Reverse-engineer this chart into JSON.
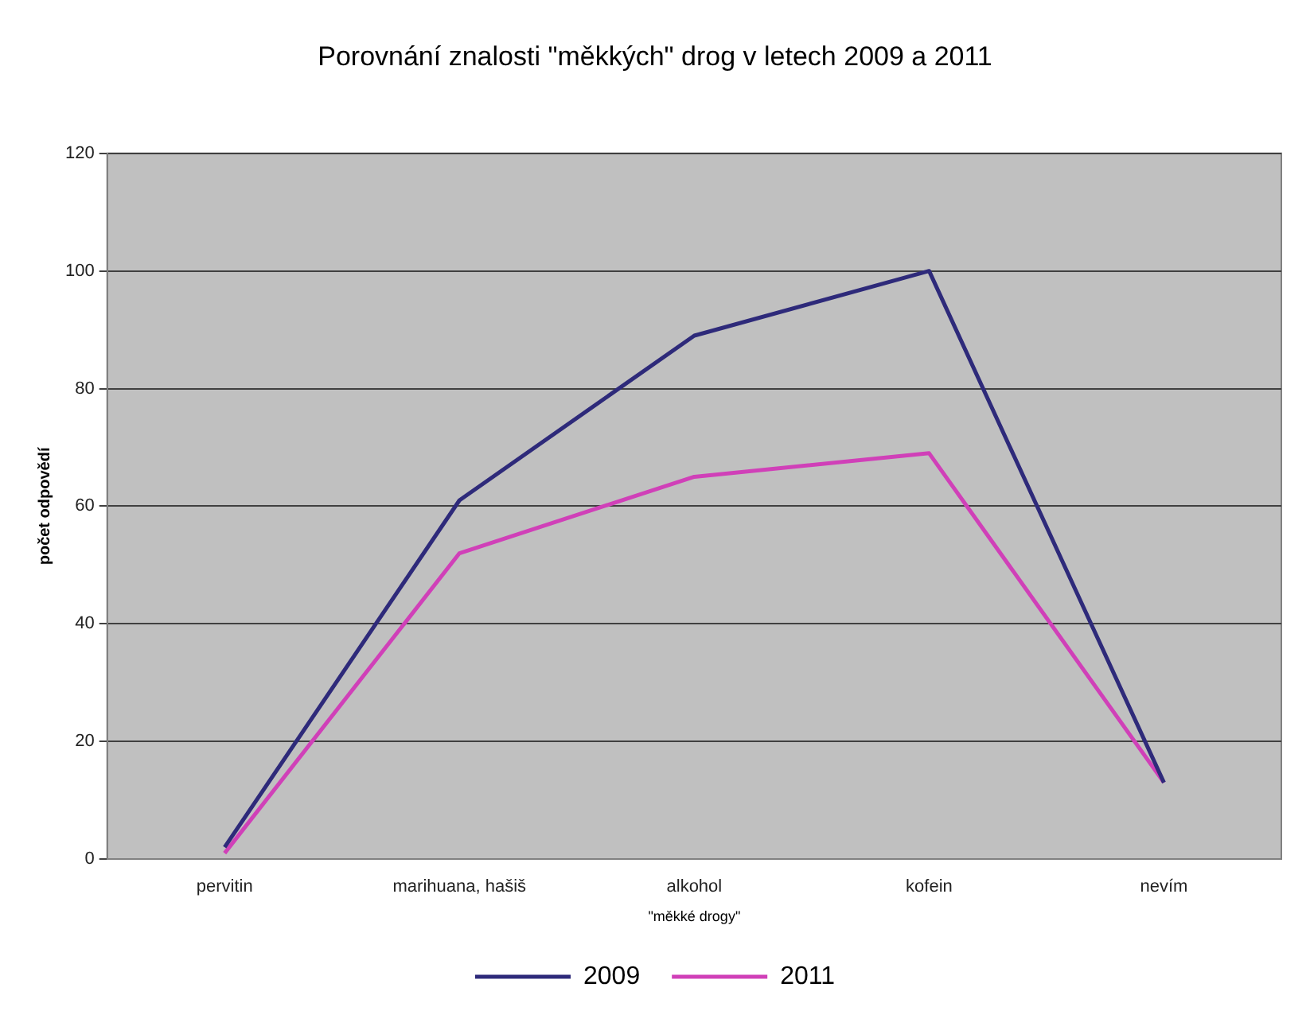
{
  "chart_data": {
    "type": "line",
    "title": "Porovnání znalosti \"měkkých\" drog v letech 2009 a 2011",
    "xlabel": "\"měkké drogy\"",
    "ylabel": "počet odpovědí",
    "categories": [
      "pervitin",
      "marihuana, hašiš",
      "alkohol",
      "kofein",
      "nevím"
    ],
    "series": [
      {
        "name": "2009",
        "color": "#2e2a7a",
        "values": [
          2,
          61,
          89,
          100,
          13
        ]
      },
      {
        "name": "2011",
        "color": "#d040b8",
        "values": [
          1,
          52,
          65,
          69,
          13
        ]
      }
    ],
    "ylim": [
      0,
      120
    ],
    "yticks": [
      0,
      20,
      40,
      60,
      80,
      100,
      120
    ],
    "grid": "y",
    "legend": "bottom",
    "marker": "none",
    "line_style": "solid"
  }
}
